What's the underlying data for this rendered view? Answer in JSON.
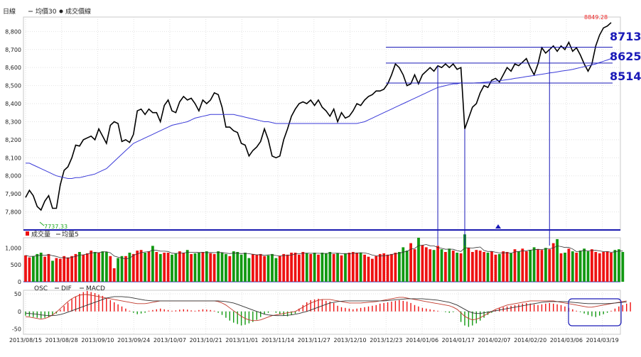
{
  "chart_data": [
    {
      "type": "line",
      "panel": "price",
      "legend": [
        "日線",
        "均價30",
        "成交價線"
      ],
      "ylim": [
        7700,
        8880
      ],
      "yticks": [
        "7,800",
        "7,900",
        "8,000",
        "8,100",
        "8,200",
        "8,300",
        "8,400",
        "8,500",
        "8,600",
        "8,700",
        "8,800"
      ],
      "ytick_values": [
        7800,
        7900,
        8000,
        8100,
        8200,
        8300,
        8400,
        8500,
        8600,
        8700,
        8800
      ],
      "grid": true,
      "series": [
        {
          "name": "成交價線",
          "color": "#000000",
          "values": [
            7880,
            7920,
            7890,
            7830,
            7810,
            7860,
            7890,
            7820,
            7820,
            7950,
            8030,
            8050,
            8100,
            8170,
            8165,
            8200,
            8210,
            8220,
            8200,
            8260,
            8220,
            8180,
            8280,
            8300,
            8290,
            8190,
            8200,
            8185,
            8230,
            8360,
            8370,
            8340,
            8370,
            8350,
            8350,
            8300,
            8390,
            8420,
            8360,
            8350,
            8410,
            8440,
            8420,
            8430,
            8400,
            8360,
            8420,
            8400,
            8420,
            8460,
            8450,
            8380,
            8270,
            8270,
            8250,
            8240,
            8180,
            8170,
            8110,
            8140,
            8160,
            8190,
            8260,
            8200,
            8110,
            8100,
            8110,
            8200,
            8260,
            8330,
            8370,
            8400,
            8410,
            8400,
            8420,
            8390,
            8420,
            8380,
            8360,
            8330,
            8370,
            8300,
            8350,
            8320,
            8330,
            8360,
            8400,
            8390,
            8420,
            8440,
            8450,
            8470,
            8470,
            8480,
            8510,
            8560,
            8620,
            8600,
            8560,
            8500,
            8510,
            8560,
            8510,
            8560,
            8580,
            8600,
            8580,
            8610,
            8600,
            8620,
            8600,
            8620,
            8590,
            8600,
            8260,
            8320,
            8380,
            8400,
            8460,
            8500,
            8490,
            8530,
            8540,
            8520,
            8560,
            8600,
            8580,
            8620,
            8610,
            8630,
            8650,
            8600,
            8560,
            8620,
            8710,
            8680,
            8700,
            8720,
            8690,
            8720,
            8700,
            8740,
            8690,
            8710,
            8670,
            8620,
            8580,
            8620,
            8720,
            8780,
            8820,
            8830,
            8849.28
          ]
        },
        {
          "name": "均價30",
          "color": "#3a3ad8",
          "values": [
            8070,
            8070,
            8060,
            8050,
            8040,
            8030,
            8020,
            8010,
            8000,
            7995,
            7990,
            7985,
            7985,
            7990,
            7990,
            7995,
            8000,
            8005,
            8010,
            8020,
            8030,
            8040,
            8060,
            8080,
            8100,
            8120,
            8140,
            8160,
            8180,
            8190,
            8200,
            8210,
            8220,
            8230,
            8240,
            8250,
            8260,
            8270,
            8280,
            8285,
            8290,
            8295,
            8300,
            8310,
            8320,
            8325,
            8330,
            8335,
            8340,
            8340,
            8340,
            8340,
            8340,
            8340,
            8340,
            8335,
            8330,
            8325,
            8320,
            8315,
            8310,
            8305,
            8300,
            8300,
            8295,
            8290,
            8290,
            8290,
            8290,
            8290,
            8290,
            8290,
            8290,
            8290,
            8290,
            8290,
            8290,
            8290,
            8290,
            8290,
            8290,
            8290,
            8290,
            8290,
            8290,
            8290,
            8290,
            8295,
            8300,
            8310,
            8320,
            8330,
            8340,
            8350,
            8360,
            8370,
            8380,
            8390,
            8400,
            8410,
            8420,
            8430,
            8440,
            8450,
            8460,
            8470,
            8480,
            8490,
            8495,
            8500,
            8505,
            8510,
            8510,
            8515,
            8514,
            8514,
            8514,
            8515,
            8516,
            8518,
            8520,
            8522,
            8525,
            8528,
            8530,
            8533,
            8536,
            8540,
            8543,
            8546,
            8550,
            8553,
            8556,
            8560,
            8563,
            8566,
            8570,
            8573,
            8576,
            8580,
            8583,
            8586,
            8590,
            8595,
            8600,
            8605,
            8610,
            8615,
            8620,
            8628,
            8635,
            8642,
            8650
          ]
        }
      ],
      "annotations": {
        "high_label": "8849.28",
        "low_label": "7737.33",
        "low_value": 7737.33,
        "levels": [
          {
            "value": 8713,
            "label": "8713"
          },
          {
            "value": 8625,
            "label": "8625"
          },
          {
            "value": 8514,
            "label": "8514"
          }
        ]
      }
    },
    {
      "type": "bar",
      "panel": "volume",
      "legend": [
        "成交量",
        "均量5"
      ],
      "ylim": [
        0,
        1300
      ],
      "yticks": [
        "1,000",
        "500",
        "0"
      ],
      "ytick_values": [
        1000,
        500,
        0
      ],
      "values": [
        780,
        720,
        760,
        820,
        860,
        740,
        820,
        620,
        700,
        680,
        760,
        720,
        760,
        820,
        880,
        800,
        840,
        920,
        880,
        860,
        900,
        880,
        760,
        400,
        700,
        760,
        760,
        860,
        820,
        920,
        940,
        860,
        900,
        1060,
        880,
        820,
        860,
        860,
        800,
        840,
        900,
        860,
        940,
        820,
        840,
        860,
        880,
        900,
        840,
        820,
        900,
        860,
        820,
        760,
        900,
        880,
        800,
        860,
        700,
        820,
        800,
        820,
        760,
        780,
        820,
        700,
        760,
        820,
        800,
        860,
        860,
        800,
        880,
        840,
        820,
        860,
        800,
        860,
        840,
        880,
        820,
        840,
        780,
        840,
        860,
        880,
        860,
        860,
        800,
        740,
        680,
        760,
        820,
        840,
        800,
        820,
        860,
        880,
        1020,
        920,
        1140,
        960,
        1300,
        1080,
        1020,
        960,
        940,
        1060,
        960,
        880,
        980,
        920,
        860,
        840,
        1400,
        1000,
        880,
        940,
        920,
        880,
        860,
        900,
        800,
        820,
        900,
        880,
        840,
        960,
        900,
        980,
        900,
        940,
        1020,
        960,
        940,
        1000,
        960,
        1140,
        1260,
        840,
        860,
        980,
        900,
        860,
        920,
        980,
        900,
        960,
        880,
        840,
        880,
        900,
        860,
        940,
        960,
        880
      ],
      "colors_up": "#ee1111",
      "colors_down": "#119911"
    },
    {
      "type": "bar",
      "panel": "macd",
      "legend": [
        "OSC",
        "DIF",
        "MACD"
      ],
      "ylim": [
        -65,
        60
      ],
      "yticks": [
        "50",
        "0",
        "-50"
      ],
      "ytick_values": [
        50,
        0,
        -50
      ],
      "xticks": [
        "2013/08/15",
        "2013/08/28",
        "2013/09/10",
        "2013/09/24",
        "2013/10/07",
        "2013/10/21",
        "2013/11/01",
        "2013/11/14",
        "2013/11/27",
        "2013/12/10",
        "2013/12/23",
        "2014/01/06",
        "2014/01/17",
        "2014/02/07",
        "2014/02/20",
        "2014/03/06",
        "2014/03/19"
      ],
      "osc": [
        -12,
        -14,
        -16,
        -18,
        -20,
        -18,
        -16,
        -10,
        -6,
        5,
        15,
        25,
        35,
        42,
        50,
        55,
        58,
        55,
        52,
        48,
        44,
        38,
        32,
        26,
        20,
        14,
        8,
        2,
        -4,
        -8,
        -6,
        -4,
        2,
        4,
        6,
        8,
        6,
        4,
        2,
        3,
        5,
        6,
        5,
        3,
        2,
        4,
        6,
        5,
        4,
        2,
        -4,
        -10,
        -18,
        -26,
        -32,
        -36,
        -40,
        -38,
        -34,
        -30,
        -24,
        -16,
        -8,
        -4,
        0,
        -4,
        -8,
        -12,
        -14,
        -10,
        -6,
        8,
        18,
        26,
        32,
        34,
        36,
        34,
        30,
        28,
        24,
        16,
        12,
        10,
        8,
        6,
        8,
        10,
        12,
        14,
        16,
        18,
        22,
        24,
        26,
        28,
        30,
        32,
        30,
        28,
        24,
        18,
        14,
        10,
        8,
        6,
        4,
        2,
        0,
        -2,
        -4,
        -2,
        0,
        -30,
        -40,
        -44,
        -40,
        -34,
        -26,
        -18,
        -10,
        -4,
        4,
        10,
        12,
        14,
        16,
        18,
        20,
        22,
        24,
        22,
        20,
        18,
        20,
        22,
        24,
        22,
        20,
        18,
        14,
        10,
        6,
        2,
        -2,
        -6,
        -10,
        -14,
        -16,
        -12,
        -8,
        -4,
        2,
        8,
        14,
        18,
        22,
        26
      ],
      "dif": [
        -15,
        -16,
        -18,
        -20,
        -22,
        -20,
        -16,
        -10,
        -2,
        8,
        18,
        28,
        36,
        42,
        46,
        48,
        48,
        46,
        44,
        42,
        40,
        38,
        36,
        34,
        32,
        30,
        28,
        26,
        24,
        22,
        22,
        22,
        24,
        26,
        28,
        30,
        30,
        30,
        30,
        30,
        30,
        30,
        30,
        30,
        30,
        30,
        30,
        30,
        30,
        30,
        28,
        24,
        18,
        10,
        2,
        -6,
        -14,
        -20,
        -24,
        -26,
        -26,
        -24,
        -20,
        -16,
        -12,
        -10,
        -8,
        -6,
        -4,
        -2,
        0,
        6,
        12,
        18,
        24,
        28,
        32,
        34,
        34,
        34,
        32,
        30,
        28,
        26,
        24,
        24,
        24,
        24,
        25,
        26,
        27,
        28,
        30,
        32,
        34,
        36,
        38,
        40,
        40,
        38,
        36,
        34,
        32,
        30,
        28,
        26,
        24,
        22,
        20,
        18,
        16,
        12,
        6,
        -4,
        -14,
        -20,
        -24,
        -22,
        -18,
        -12,
        -6,
        0,
        6,
        10,
        14,
        18,
        20,
        22,
        24,
        26,
        28,
        30,
        30,
        30,
        30,
        30,
        30,
        30,
        28,
        26,
        24,
        22,
        20,
        18,
        16,
        14,
        12,
        12,
        14,
        16,
        18,
        20,
        22,
        24,
        26,
        28,
        30
      ],
      "macd": [
        -5,
        -6,
        -7,
        -8,
        -10,
        -11,
        -12,
        -12,
        -11,
        -9,
        -6,
        -2,
        2,
        6,
        10,
        14,
        18,
        22,
        26,
        30,
        34,
        38,
        40,
        42,
        42,
        42,
        41,
        40,
        38,
        36,
        34,
        32,
        31,
        30,
        30,
        30,
        30,
        30,
        30,
        30,
        30,
        30,
        30,
        30,
        30,
        30,
        30,
        30,
        30,
        30,
        30,
        29,
        28,
        26,
        24,
        20,
        16,
        12,
        8,
        4,
        0,
        -4,
        -8,
        -10,
        -11,
        -12,
        -12,
        -12,
        -11,
        -10,
        -8,
        -6,
        -3,
        0,
        4,
        8,
        12,
        16,
        20,
        24,
        26,
        28,
        29,
        30,
        30,
        30,
        30,
        30,
        30,
        30,
        30,
        30,
        30,
        30,
        31,
        32,
        33,
        34,
        35,
        36,
        36,
        36,
        36,
        36,
        35,
        34,
        33,
        32,
        30,
        28,
        26,
        22,
        18,
        12,
        6,
        0,
        -4,
        -6,
        -6,
        -4,
        -2,
        0,
        2,
        4,
        6,
        8,
        10,
        12,
        14,
        16,
        18,
        20,
        22,
        24,
        26,
        27,
        28,
        28,
        28,
        28,
        28,
        27,
        26,
        25,
        24,
        23,
        22,
        22,
        22,
        22,
        22,
        22,
        23,
        24,
        25,
        26,
        27
      ]
    }
  ]
}
